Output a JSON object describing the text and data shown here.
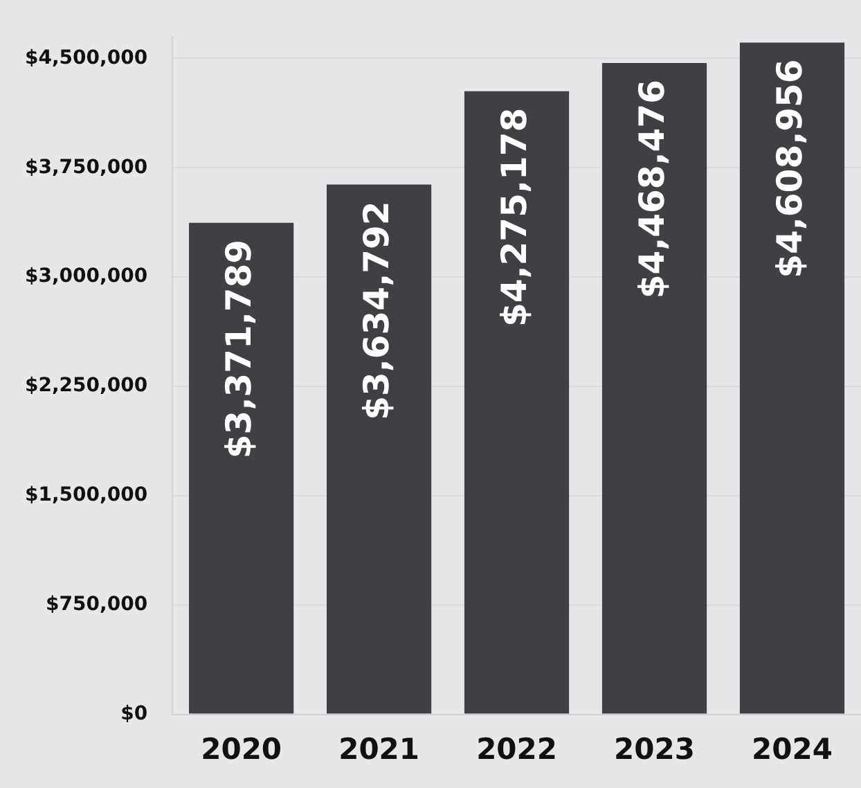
{
  "chart_data": {
    "type": "bar",
    "categories": [
      "2020",
      "2021",
      "2022",
      "2023",
      "2024"
    ],
    "values": [
      3371789,
      3634792,
      4275178,
      4468476,
      4608956
    ],
    "value_labels": [
      "$3,371,789",
      "$3,634,792",
      "$4,275,178",
      "$4,468,476",
      "$4,608,956"
    ],
    "color": "#3e4043",
    "ylim": [
      0,
      4650000
    ],
    "yticks": [
      {
        "value": 0,
        "label": "$0"
      },
      {
        "value": 750000,
        "label": "$750,000"
      },
      {
        "value": 1500000,
        "label": "$1,500,000"
      },
      {
        "value": 2250000,
        "label": "$2,250,000"
      },
      {
        "value": 3000000,
        "label": "$3,000,000"
      },
      {
        "value": 3750000,
        "label": "$3,750,000"
      },
      {
        "value": 4500000,
        "label": "$4,500,000"
      }
    ],
    "grid": "y",
    "legend": false
  }
}
